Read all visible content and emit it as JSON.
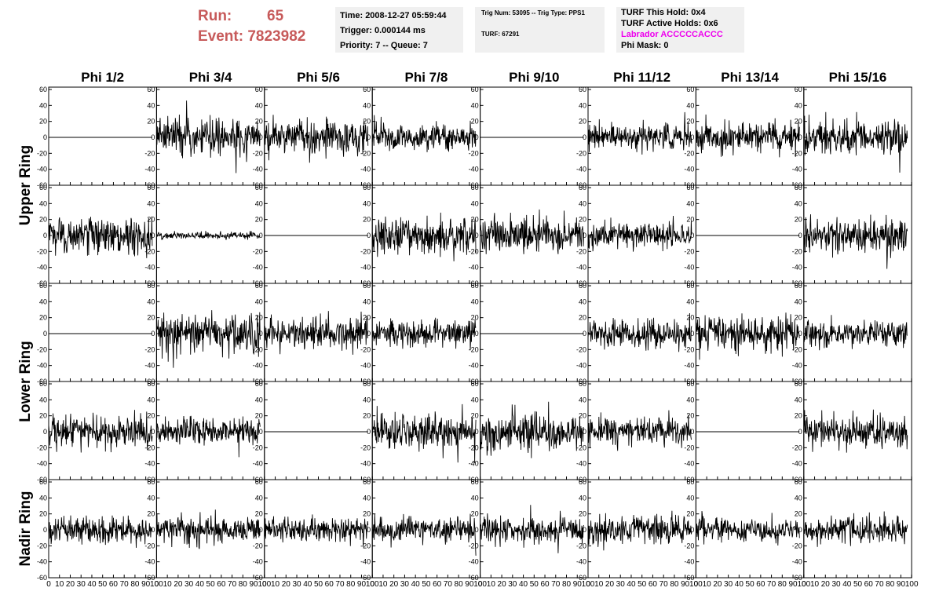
{
  "header": {
    "run_label": "Run:",
    "run_value": "65",
    "event_label": "Event:",
    "event_value": "7823982"
  },
  "time_box": {
    "time": "Time: 2008-12-27 05:59:44",
    "trigger": "Trigger: 0.000144 ms",
    "priority": "Priority: 7 -- Queue: 7"
  },
  "trig_box": {
    "trig": "Trig Num: 53095 -- Trig Type: PPS1",
    "turf": "TURF: 67291"
  },
  "turf_box": {
    "this_hold": "TURF This Hold: 0x4",
    "active_holds": "TURF Active Holds: 0x6",
    "labrador": "Labrador ACCCCCACCC",
    "phi_mask": "Phi Mask: 0"
  },
  "colors": {
    "run_text": "#c75a5a",
    "labrador_text": "#ee00ee",
    "info_box_bg": "#f0f0f0",
    "trace": "#000000"
  },
  "chart_data": {
    "type": "line",
    "columns": [
      "Phi 1/2",
      "Phi 3/4",
      "Phi 5/6",
      "Phi 7/8",
      "Phi 9/10",
      "Phi 11/12",
      "Phi 13/14",
      "Phi 15/16"
    ],
    "ring_labels": [
      {
        "label": "Upper Ring",
        "rows": [
          0,
          1
        ]
      },
      {
        "label": "Lower Ring",
        "rows": [
          2,
          3
        ]
      },
      {
        "label": "Nadir Ring",
        "rows": [
          4,
          4
        ]
      }
    ],
    "xlim": [
      0,
      100
    ],
    "ylim": [
      -60,
      60
    ],
    "x_ticks": [
      0,
      10,
      20,
      30,
      40,
      50,
      60,
      70,
      80,
      90,
      100
    ],
    "y_ticks": [
      -60,
      -40,
      -20,
      0,
      20,
      40,
      60
    ],
    "samples_per_trace": 260,
    "x_range_of_trace": [
      0,
      96
    ],
    "trace_rms": [
      [
        0,
        12,
        11,
        8,
        0,
        8,
        9,
        11
      ],
      [
        11,
        2,
        0,
        12,
        11,
        8,
        0,
        11
      ],
      [
        0,
        12,
        10,
        8,
        0,
        9,
        11,
        8
      ],
      [
        10,
        9,
        0,
        11,
        12,
        9,
        0,
        10
      ],
      [
        8,
        9,
        7,
        8,
        8,
        9,
        7,
        8
      ]
    ]
  }
}
